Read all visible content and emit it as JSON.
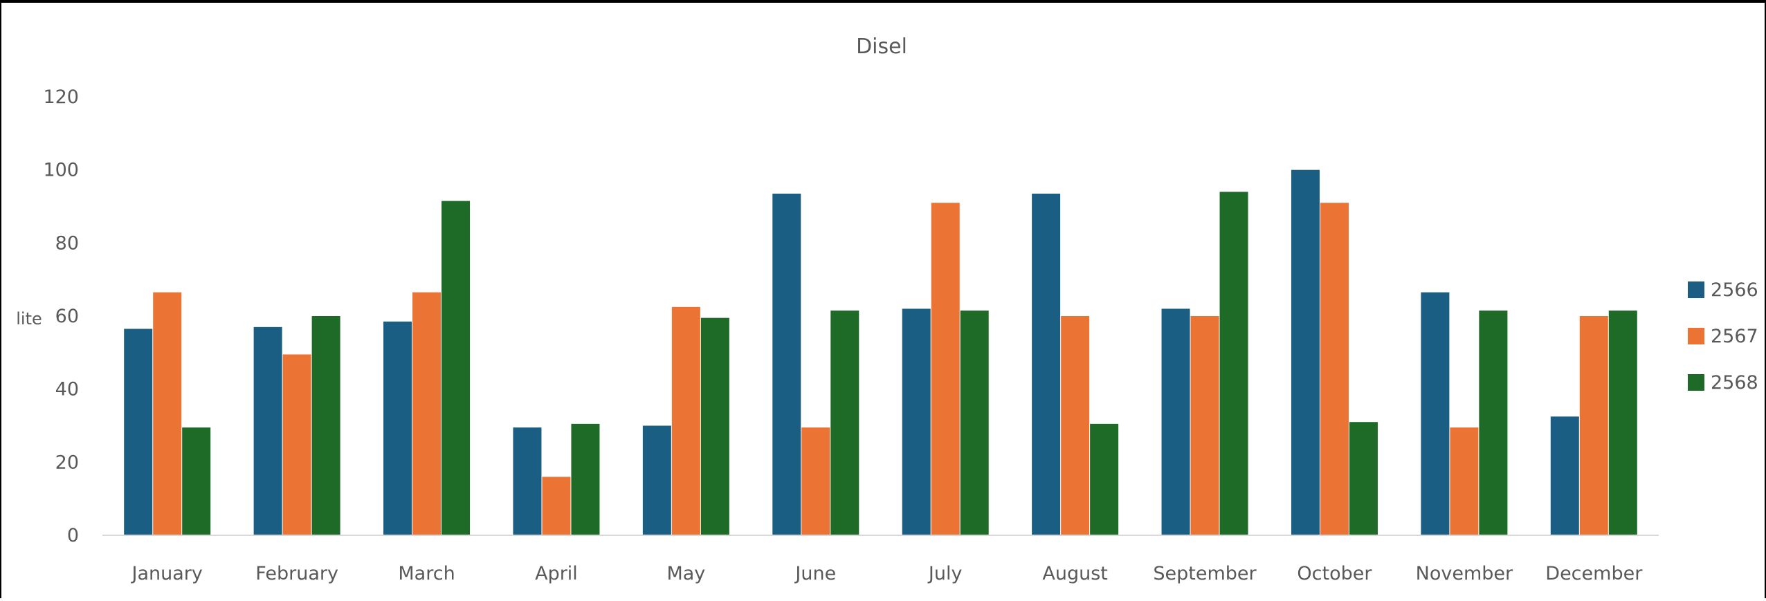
{
  "chart_data": {
    "type": "bar",
    "title": "Disel",
    "xlabel": "",
    "ylabel": "lite",
    "ylim": [
      0,
      120
    ],
    "yticks": [
      0,
      20,
      40,
      60,
      80,
      100,
      120
    ],
    "grid": false,
    "legend_position": "right",
    "categories": [
      "January",
      "February",
      "March",
      "April",
      "May",
      "June",
      "July",
      "August",
      "September",
      "October",
      "November",
      "December"
    ],
    "series": [
      {
        "name": "2566",
        "color": "#1a5e84",
        "values": [
          56.5,
          57,
          58.5,
          29.5,
          30,
          93.5,
          62,
          93.5,
          62,
          100,
          66.5,
          32.5
        ]
      },
      {
        "name": "2567",
        "color": "#eb7434",
        "values": [
          66.5,
          49.5,
          66.5,
          16,
          62.5,
          29.5,
          91,
          60,
          60,
          91,
          29.5,
          60
        ]
      },
      {
        "name": "2568",
        "color": "#1e6b28",
        "values": [
          29.5,
          60,
          91.5,
          30.5,
          59.5,
          61.5,
          61.5,
          30.5,
          94,
          31,
          61.5,
          61.5
        ]
      }
    ]
  }
}
